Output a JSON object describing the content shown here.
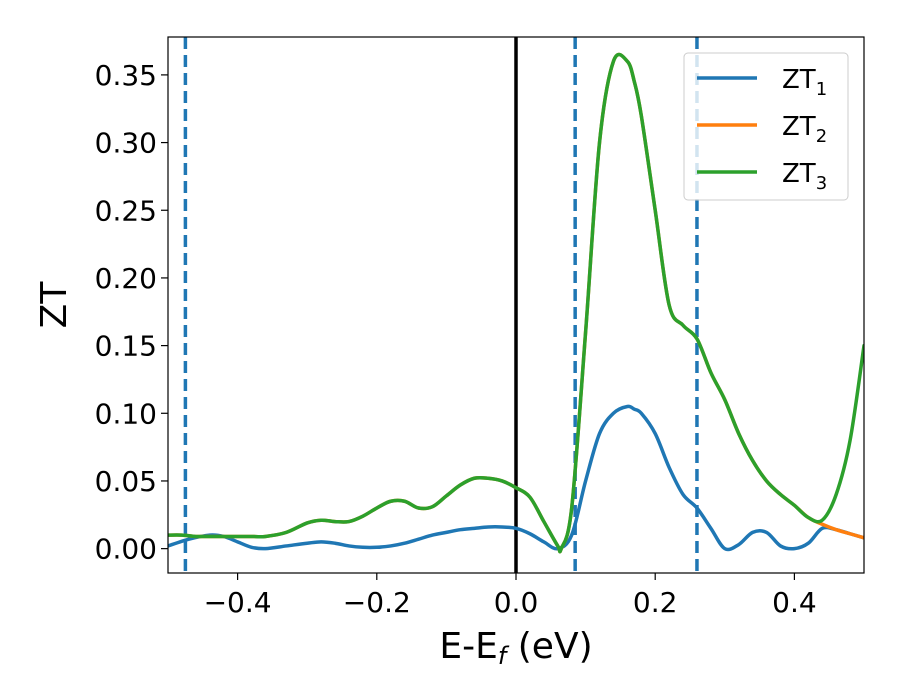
{
  "chart_data": {
    "type": "line",
    "xlabel": {
      "main": "E-E",
      "sub": "f",
      "tail": " (eV)"
    },
    "ylabel": "ZT",
    "xlim": [
      -0.5,
      0.5
    ],
    "ylim": [
      -0.018,
      0.378
    ],
    "xticks": [
      -0.4,
      -0.2,
      0.0,
      0.2,
      0.4
    ],
    "xtick_labels": [
      "−0.4",
      "−0.2",
      "0.0",
      "0.2",
      "0.4"
    ],
    "yticks": [
      0.0,
      0.05,
      0.1,
      0.15,
      0.2,
      0.25,
      0.3,
      0.35
    ],
    "ytick_labels": [
      "0.00",
      "0.05",
      "0.10",
      "0.15",
      "0.20",
      "0.25",
      "0.30",
      "0.35"
    ],
    "grid": false,
    "legend_position": "top-right",
    "series": [
      {
        "name": "ZT",
        "name_sub": "1",
        "color": "#1f77b4",
        "x": [
          -0.5,
          -0.47,
          -0.44,
          -0.42,
          -0.4,
          -0.38,
          -0.36,
          -0.33,
          -0.3,
          -0.28,
          -0.26,
          -0.24,
          -0.22,
          -0.2,
          -0.18,
          -0.16,
          -0.14,
          -0.12,
          -0.1,
          -0.08,
          -0.06,
          -0.04,
          -0.02,
          0.0,
          0.02,
          0.04,
          0.06,
          0.08,
          0.1,
          0.12,
          0.14,
          0.16,
          0.17,
          0.18,
          0.2,
          0.22,
          0.24,
          0.26,
          0.28,
          0.3,
          0.32,
          0.34,
          0.36,
          0.38,
          0.4,
          0.42,
          0.44,
          0.46,
          0.48,
          0.5
        ],
        "y": [
          0.002,
          0.007,
          0.01,
          0.009,
          0.005,
          0.001,
          0.0,
          0.002,
          0.004,
          0.005,
          0.004,
          0.002,
          0.001,
          0.001,
          0.002,
          0.004,
          0.007,
          0.01,
          0.012,
          0.014,
          0.015,
          0.016,
          0.016,
          0.015,
          0.011,
          0.005,
          0.0,
          0.01,
          0.05,
          0.085,
          0.1,
          0.105,
          0.103,
          0.1,
          0.085,
          0.06,
          0.04,
          0.03,
          0.015,
          0.0,
          0.003,
          0.012,
          0.012,
          0.002,
          0.0,
          0.004,
          0.015,
          0.014,
          0.011,
          0.008
        ]
      },
      {
        "name": "ZT",
        "name_sub": "2",
        "color": "#ff7f0e",
        "x": [
          -0.5,
          -0.48,
          -0.46,
          -0.44,
          -0.42,
          -0.4,
          -0.38,
          -0.36,
          -0.33,
          -0.3,
          -0.28,
          -0.26,
          -0.24,
          -0.22,
          -0.2,
          -0.18,
          -0.16,
          -0.14,
          -0.12,
          -0.1,
          -0.08,
          -0.06,
          -0.04,
          -0.02,
          0.0,
          0.02,
          0.04,
          0.06,
          0.065,
          0.08,
          0.1,
          0.12,
          0.14,
          0.16,
          0.17,
          0.18,
          0.2,
          0.22,
          0.24,
          0.26,
          0.28,
          0.3,
          0.32,
          0.34,
          0.36,
          0.38,
          0.4,
          0.42,
          0.44,
          0.46,
          0.48,
          0.5
        ],
        "y": [
          0.01,
          0.01,
          0.009,
          0.009,
          0.009,
          0.009,
          0.009,
          0.009,
          0.012,
          0.019,
          0.021,
          0.02,
          0.02,
          0.024,
          0.03,
          0.035,
          0.035,
          0.03,
          0.031,
          0.039,
          0.047,
          0.052,
          0.052,
          0.05,
          0.045,
          0.038,
          0.02,
          0.002,
          0.0,
          0.03,
          0.16,
          0.3,
          0.36,
          0.36,
          0.345,
          0.32,
          0.25,
          0.18,
          0.165,
          0.155,
          0.13,
          0.11,
          0.085,
          0.065,
          0.05,
          0.04,
          0.032,
          0.023,
          0.018,
          0.014,
          0.011,
          0.008
        ]
      },
      {
        "name": "ZT",
        "name_sub": "3",
        "color": "#2ca02c",
        "x": [
          -0.5,
          -0.48,
          -0.46,
          -0.44,
          -0.42,
          -0.4,
          -0.38,
          -0.36,
          -0.33,
          -0.3,
          -0.28,
          -0.26,
          -0.24,
          -0.22,
          -0.2,
          -0.18,
          -0.16,
          -0.14,
          -0.12,
          -0.1,
          -0.08,
          -0.06,
          -0.04,
          -0.02,
          0.0,
          0.02,
          0.04,
          0.06,
          0.065,
          0.08,
          0.1,
          0.12,
          0.14,
          0.16,
          0.17,
          0.18,
          0.2,
          0.22,
          0.24,
          0.26,
          0.28,
          0.3,
          0.32,
          0.34,
          0.36,
          0.38,
          0.4,
          0.42,
          0.44,
          0.46,
          0.48,
          0.5
        ],
        "y": [
          0.01,
          0.01,
          0.009,
          0.009,
          0.009,
          0.009,
          0.009,
          0.009,
          0.012,
          0.019,
          0.021,
          0.02,
          0.02,
          0.024,
          0.03,
          0.035,
          0.035,
          0.03,
          0.031,
          0.039,
          0.047,
          0.052,
          0.052,
          0.05,
          0.045,
          0.038,
          0.02,
          0.002,
          0.0,
          0.03,
          0.16,
          0.3,
          0.36,
          0.36,
          0.345,
          0.32,
          0.25,
          0.18,
          0.165,
          0.155,
          0.13,
          0.11,
          0.085,
          0.065,
          0.05,
          0.04,
          0.032,
          0.023,
          0.021,
          0.04,
          0.08,
          0.15
        ]
      }
    ],
    "vertical_lines": [
      {
        "x": -0.475,
        "style": "dashed",
        "color": "#1f77b4"
      },
      {
        "x": 0.0,
        "style": "solid",
        "color": "#000000"
      },
      {
        "x": 0.085,
        "style": "dashed",
        "color": "#1f77b4"
      },
      {
        "x": 0.26,
        "style": "dashed",
        "color": "#1f77b4"
      }
    ]
  }
}
